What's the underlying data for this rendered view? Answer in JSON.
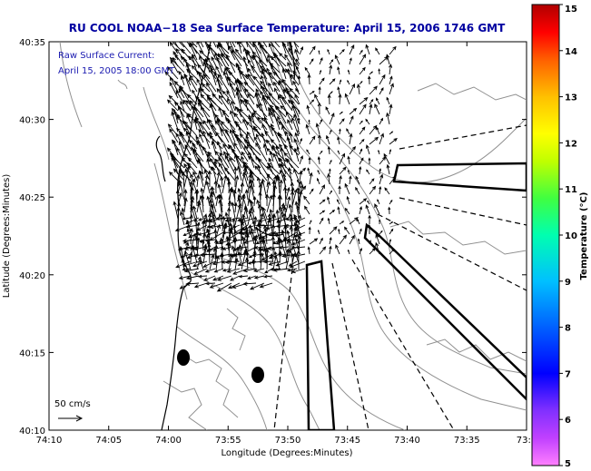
{
  "title": "RU COOL  NOAA−18  Sea Surface Temperature:  April 15, 2006 1746 GMT",
  "legend": {
    "line1": "Raw Surface Current:",
    "line2": "April 15, 2005 18:00 GMT"
  },
  "scale": {
    "label": "50 cm/s"
  },
  "axes": {
    "xlabel": "Longitude (Degrees:Minutes)",
    "ylabel": "Latitude (Degrees:Minutes)",
    "x_ticks": [
      "74:10",
      "74:05",
      "74:00",
      "73:55",
      "73:50",
      "73:45",
      "73:40",
      "73:35",
      "73:3"
    ],
    "y_ticks": [
      "40:35",
      "40:30",
      "40:25",
      "40:20",
      "40:15",
      "40:10"
    ]
  },
  "colorbar": {
    "label": "Temperature (°C)",
    "ticks": [
      "15",
      "14",
      "13",
      "12",
      "11",
      "10",
      "9",
      "8",
      "7",
      "6",
      "5"
    ],
    "min": 5,
    "max": 15
  },
  "colors": {
    "title": "#0000a0",
    "legend_text": "#1a1ab0",
    "contours": "#909090"
  }
}
